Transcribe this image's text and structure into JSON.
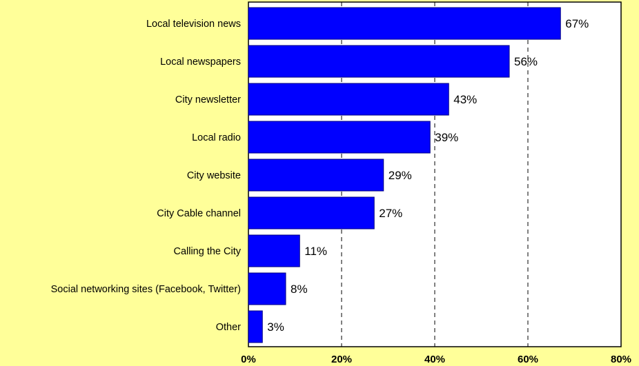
{
  "chart_data": {
    "type": "bar",
    "orientation": "horizontal",
    "categories": [
      "Local television news",
      "Local newspapers",
      "City newsletter",
      "Local radio",
      "City website",
      "City Cable channel",
      "Calling the City",
      "Social networking sites (Facebook, Twitter)",
      "Other"
    ],
    "values": [
      67,
      56,
      43,
      39,
      29,
      27,
      11,
      8,
      3
    ],
    "value_labels": [
      "67%",
      "56%",
      "43%",
      "39%",
      "29%",
      "27%",
      "11%",
      "8%",
      "3%"
    ],
    "x_ticks": [
      0,
      20,
      40,
      60,
      80
    ],
    "x_tick_labels": [
      "0%",
      "20%",
      "40%",
      "60%",
      "80%"
    ],
    "xlim": [
      0,
      80
    ],
    "grid": "vertical dashed",
    "legend": "none",
    "colors": {
      "background": "#FFFF99",
      "plot_area": "#FFFFFF",
      "bar_fill": "#0000FF",
      "bar_stroke": "#000080",
      "grid": "#000000"
    }
  }
}
